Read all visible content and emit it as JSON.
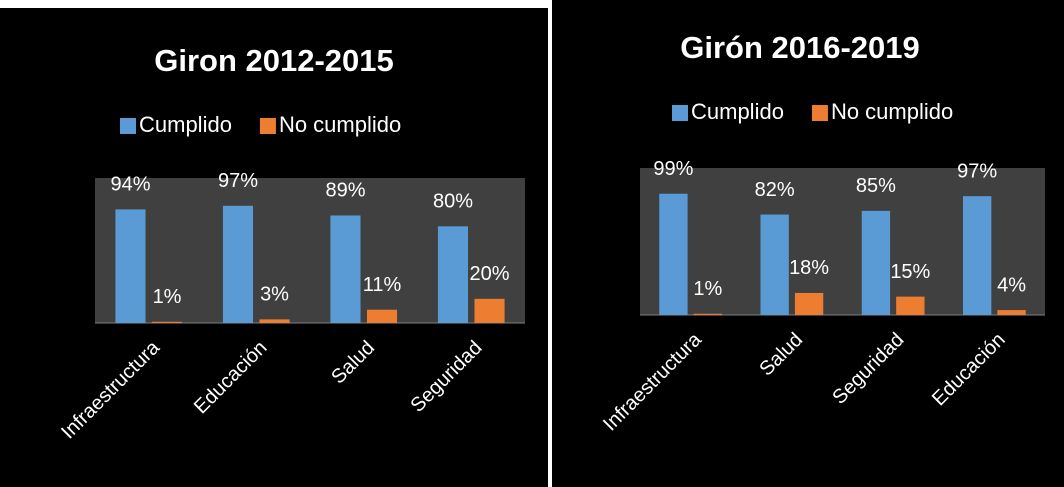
{
  "chart_data": [
    {
      "type": "bar",
      "title": "Giron 2012-2015",
      "categories": [
        "Infraestructura",
        "Educación",
        "Salud",
        "Seguridad"
      ],
      "series": [
        {
          "name": "Cumplido",
          "color": "#5b9bd5",
          "values": [
            94,
            97,
            89,
            80
          ],
          "value_labels": [
            "94%",
            "97%",
            "89%",
            "80%"
          ]
        },
        {
          "name": "No cumplido",
          "color": "#ed7d31",
          "values": [
            1,
            3,
            11,
            20
          ],
          "value_labels": [
            "1%",
            "3%",
            "11%",
            "20%"
          ]
        }
      ],
      "ylim": [
        0,
        120
      ]
    },
    {
      "type": "bar",
      "title": "Girón 2016-2019",
      "categories": [
        "Infraestructura",
        "Salud",
        "Seguridad",
        "Educación"
      ],
      "series": [
        {
          "name": "Cumplido",
          "color": "#5b9bd5",
          "values": [
            99,
            82,
            85,
            97
          ],
          "value_labels": [
            "99%",
            "82%",
            "85%",
            "97%"
          ]
        },
        {
          "name": "No cumplido",
          "color": "#ed7d31",
          "values": [
            1,
            18,
            15,
            4
          ],
          "value_labels": [
            "1%",
            "18%",
            "15%",
            "4%"
          ]
        }
      ],
      "ylim": [
        0,
        120
      ]
    }
  ]
}
